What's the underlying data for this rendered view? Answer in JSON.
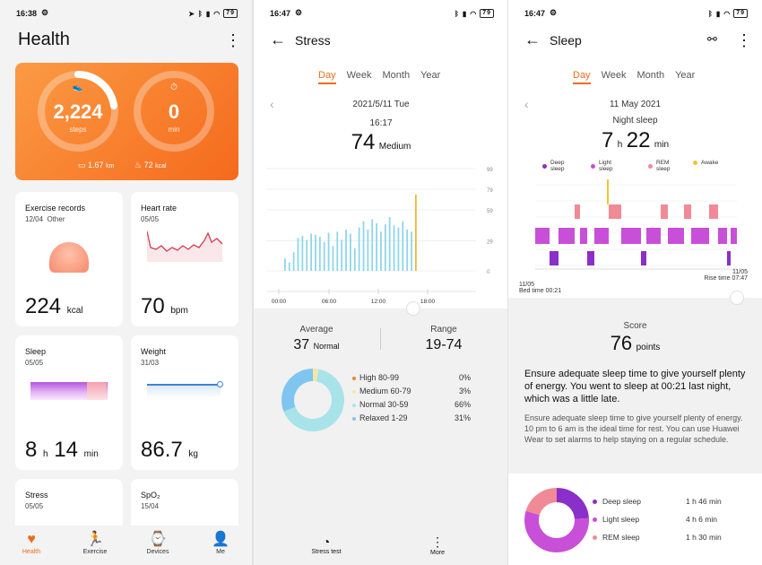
{
  "status": {
    "s1_time": "16:38",
    "s2_time": "16:47",
    "s3_time": "16:47",
    "battery": "79"
  },
  "health": {
    "title": "Health",
    "steps": "2,224",
    "steps_label": "steps",
    "min": "0",
    "min_label": "min",
    "distance": "1.67",
    "distance_unit": "km",
    "calories": "72",
    "calories_unit": "kcal",
    "cards": {
      "exercise": {
        "title": "Exercise records",
        "date": "12/04",
        "type": "Other",
        "value": "224",
        "unit": "kcal"
      },
      "heart": {
        "title": "Heart rate",
        "date": "05/05",
        "value": "70",
        "unit": "bpm"
      },
      "sleep": {
        "title": "Sleep",
        "date": "05/05",
        "h": "8",
        "h_unit": "h",
        "m": "14",
        "m_unit": "min"
      },
      "weight": {
        "title": "Weight",
        "date": "31/03",
        "value": "86.7",
        "unit": "kg"
      },
      "stress": {
        "title": "Stress",
        "date": "05/05"
      },
      "spo2": {
        "title": "SpO₂",
        "date": "15/04"
      }
    },
    "nav": [
      "Health",
      "Exercise",
      "Devices",
      "Me"
    ]
  },
  "stress": {
    "title": "Stress",
    "tabs": [
      "Day",
      "Week",
      "Month",
      "Year"
    ],
    "date": "2021/5/11  Tue",
    "time": "16:17",
    "value": "74",
    "level": "Medium",
    "y_ticks": [
      "99",
      "79",
      "59",
      "29",
      "0"
    ],
    "x_ticks": [
      "00:00",
      "06:00",
      "12:00",
      "18:00"
    ],
    "average_label": "Average",
    "average_value": "37",
    "average_level": "Normal",
    "range_label": "Range",
    "range_value": "19-74",
    "legend": [
      {
        "label": "High 80-99",
        "pct": "0%",
        "color": "#e8872d"
      },
      {
        "label": "Medium 60-79",
        "pct": "3%",
        "color": "#f4e7a6"
      },
      {
        "label": "Normal 30-59",
        "pct": "66%",
        "color": "#a8e3ea"
      },
      {
        "label": "Relaxed 1-29",
        "pct": "31%",
        "color": "#7ec6ef"
      }
    ],
    "bottom": [
      "Stress test",
      "More"
    ]
  },
  "chart_data": [
    {
      "type": "bar",
      "title": "",
      "xlabel": "",
      "ylabel": "",
      "ylim": [
        0,
        99
      ],
      "x_ticks": [
        "00:00",
        "06:00",
        "12:00",
        "18:00"
      ],
      "values": [
        12,
        8,
        18,
        32,
        34,
        30,
        36,
        35,
        33,
        28,
        37,
        24,
        38,
        30,
        40,
        36,
        22,
        42,
        48,
        40,
        50,
        46,
        38,
        45,
        52,
        44,
        42,
        48,
        40,
        38,
        74
      ]
    },
    {
      "type": "pie",
      "labels": [
        "High 80-99",
        "Medium 60-79",
        "Normal 30-59",
        "Relaxed 1-29"
      ],
      "values": [
        0,
        3,
        66,
        31
      ]
    },
    {
      "type": "pie",
      "labels": [
        "Deep sleep",
        "Light sleep",
        "REM sleep"
      ],
      "values": [
        106,
        246,
        90
      ]
    }
  ],
  "sleep": {
    "title": "Sleep",
    "tabs": [
      "Day",
      "Week",
      "Month",
      "Year"
    ],
    "date": "11 May 2021",
    "night_label": "Night sleep",
    "hours": "7",
    "h_unit": "h",
    "minutes": "22",
    "m_unit": "min",
    "legend": [
      {
        "label": "Deep\nsleep",
        "color": "#8a2fc9"
      },
      {
        "label": "Light\nsleep",
        "color": "#c84fd8"
      },
      {
        "label": "REM\nsleep",
        "color": "#f08a96"
      },
      {
        "label": "Awake",
        "color": "#f6c431"
      }
    ],
    "bed_date": "11/05",
    "bed_label": "Bed time 00:21",
    "rise_date": "11/05",
    "rise_label": "Rise time 07:47",
    "score_label": "Score",
    "score": "76",
    "score_unit": "points",
    "advice_main": "Ensure adequate sleep time to give yourself plenty of energy. You went to sleep at 00:21 last night, which was a little late.",
    "advice_sub": "Ensure adequate sleep time to give yourself plenty of energy. 10 pm to 6 am is the ideal time for rest. You can use Huawei Wear to set alarms to help staying on a regular schedule.",
    "breakdown": [
      {
        "label": "Deep sleep",
        "value": "1 h 46 min",
        "color": "#8a2fc9"
      },
      {
        "label": "Light sleep",
        "value": "4 h 6 min",
        "color": "#c84fd8"
      },
      {
        "label": "REM sleep",
        "value": "1 h 30 min",
        "color": "#f08a96"
      }
    ]
  }
}
